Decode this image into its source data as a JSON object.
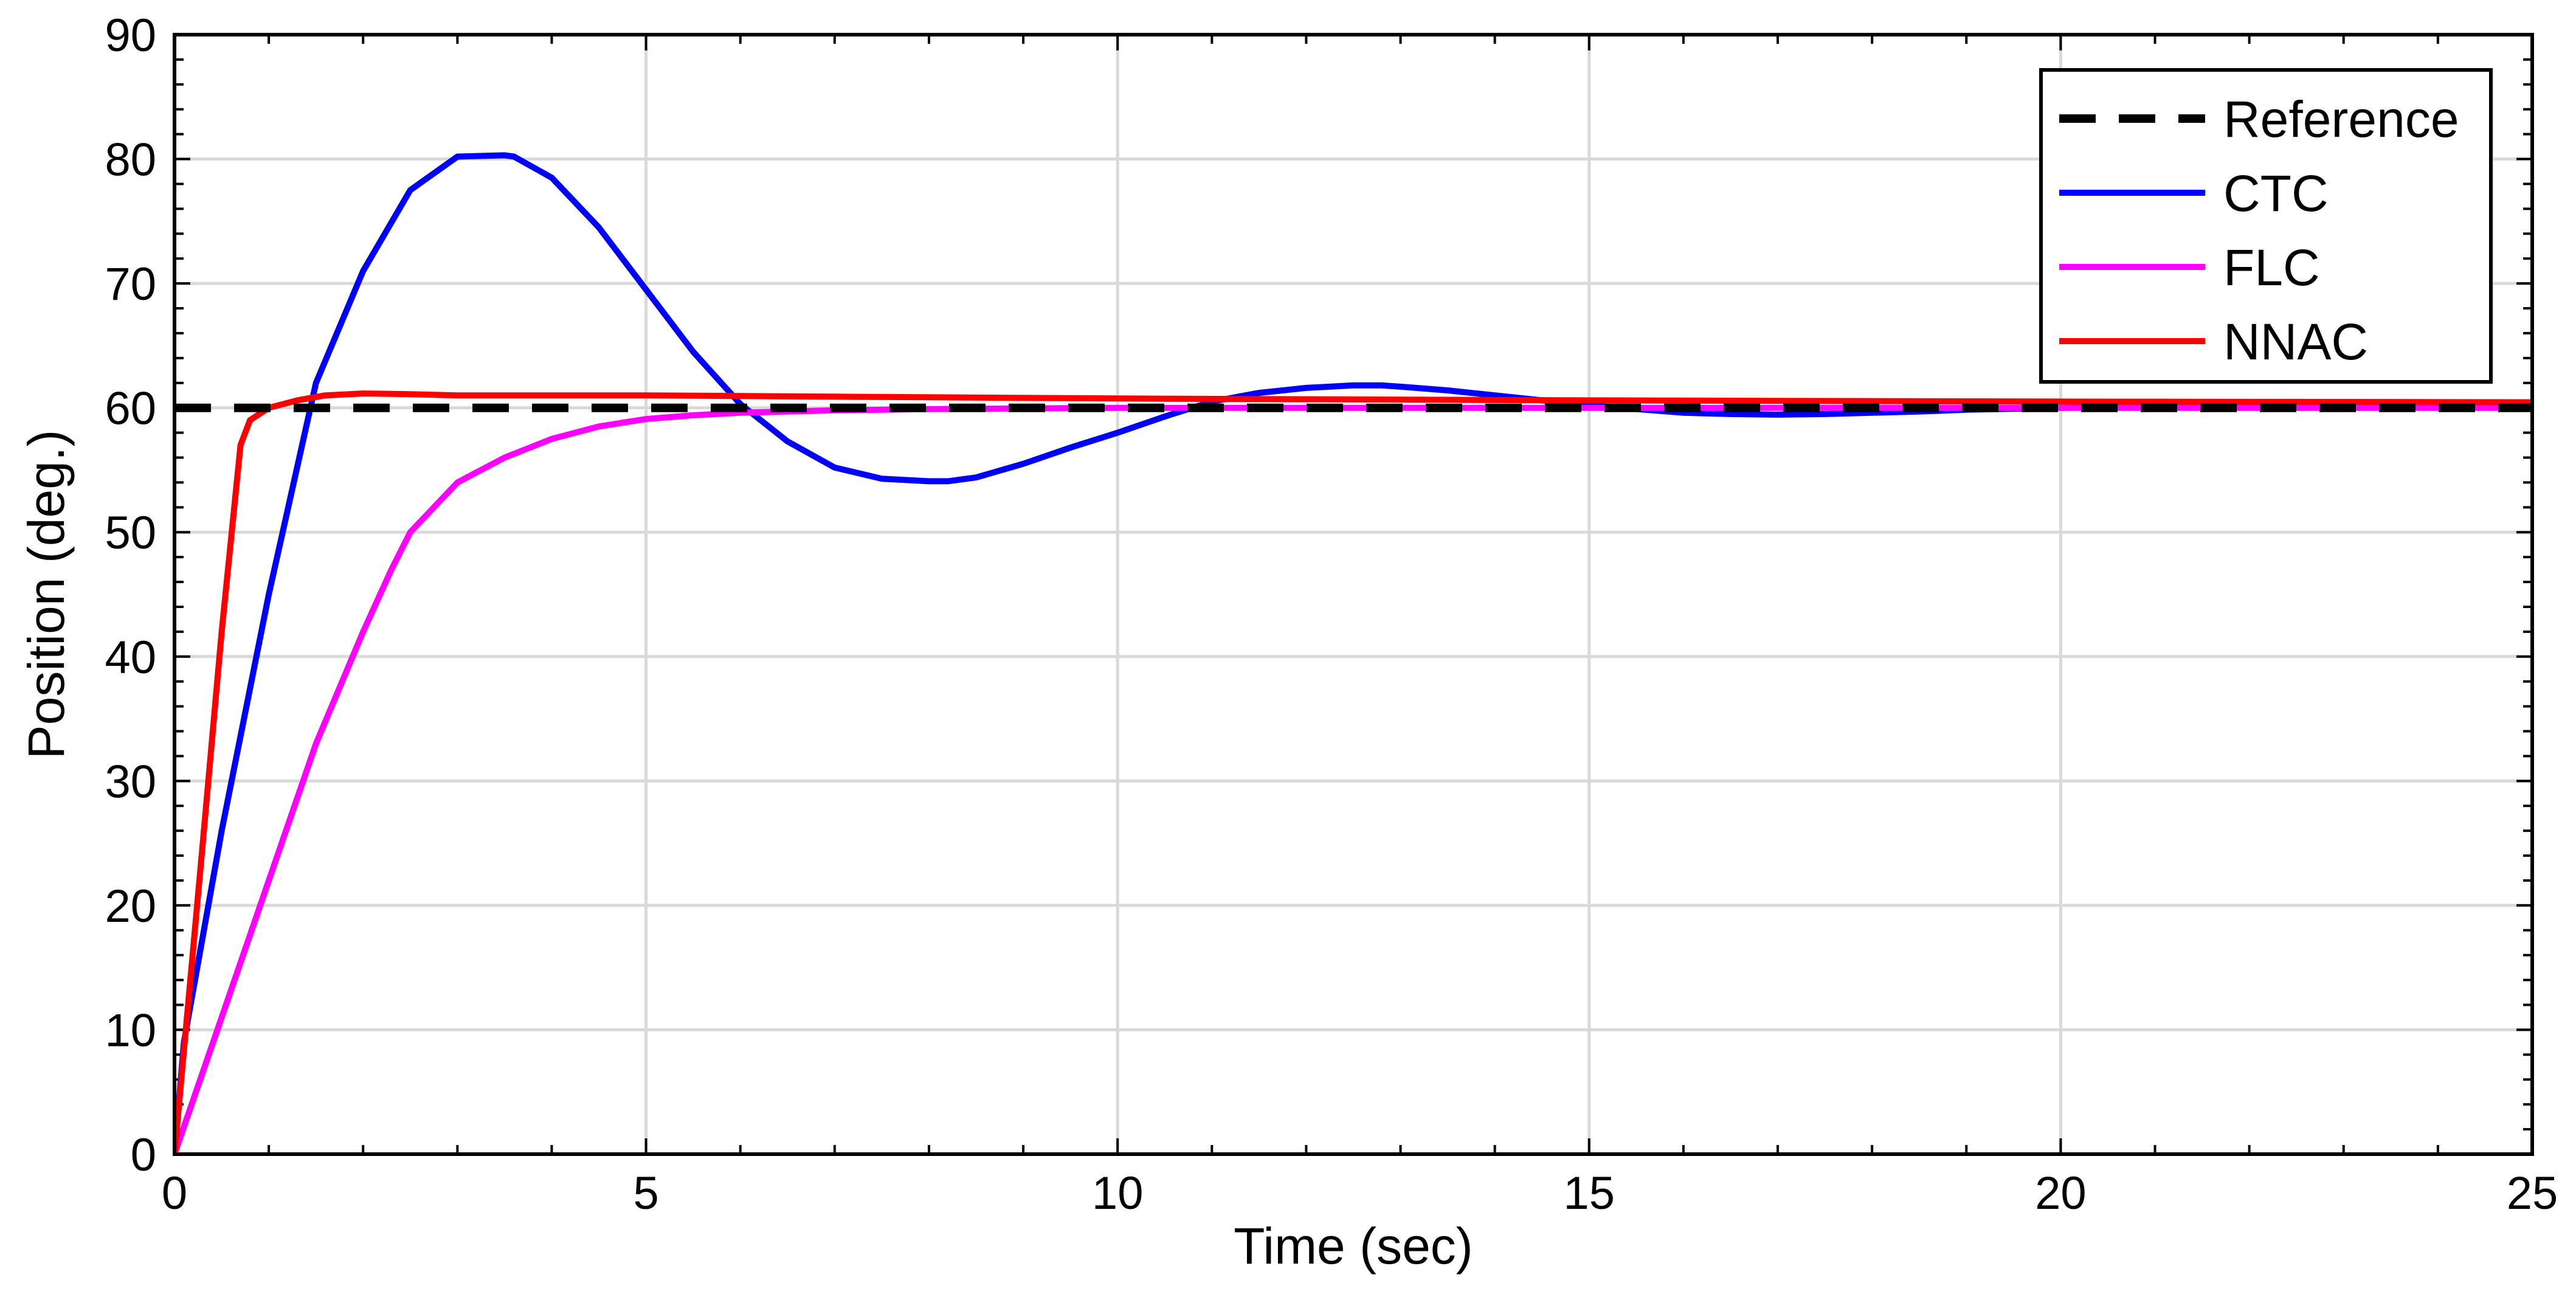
{
  "chart_data": {
    "type": "line",
    "title": "",
    "xlabel": "Time (sec)",
    "ylabel": "Position (deg.)",
    "xlim": [
      0,
      25
    ],
    "ylim": [
      0,
      90
    ],
    "xticks": [
      0,
      5,
      10,
      15,
      20,
      25
    ],
    "yticks": [
      0,
      10,
      20,
      30,
      40,
      50,
      60,
      70,
      80,
      90
    ],
    "grid": true,
    "legend_position": "top-right",
    "series": [
      {
        "name": "Reference",
        "color": "#000000",
        "style": "dashed",
        "x": [
          0,
          25
        ],
        "y": [
          60,
          60
        ]
      },
      {
        "name": "CTC",
        "color": "#0000ff",
        "style": "solid",
        "x": [
          0,
          0.1,
          0.5,
          1.0,
          1.5,
          2.0,
          2.5,
          3.0,
          3.5,
          3.6,
          4.0,
          4.5,
          5.0,
          5.5,
          6.0,
          6.5,
          7.0,
          7.5,
          8.0,
          8.2,
          8.5,
          9.0,
          9.5,
          10.0,
          10.5,
          11.0,
          11.5,
          12.0,
          12.5,
          12.8,
          13.0,
          13.5,
          14.0,
          14.5,
          15.0,
          15.5,
          16.0,
          16.5,
          17.0,
          17.5,
          18.0,
          18.5,
          19.0,
          20.0,
          21.0,
          22.0,
          23.0,
          24.0,
          25.0
        ],
        "y": [
          0,
          9,
          26,
          45,
          62,
          71,
          77.5,
          80.2,
          80.3,
          80.2,
          78.5,
          74.5,
          69.5,
          64.5,
          60.3,
          57.3,
          55.2,
          54.3,
          54.1,
          54.1,
          54.4,
          55.5,
          56.8,
          58.0,
          59.3,
          60.5,
          61.2,
          61.6,
          61.8,
          61.8,
          61.7,
          61.4,
          61.0,
          60.6,
          60.2,
          59.9,
          59.6,
          59.5,
          59.45,
          59.5,
          59.6,
          59.7,
          59.85,
          60.0,
          60.05,
          60.1,
          60.1,
          60.05,
          60.0
        ]
      },
      {
        "name": "FLC",
        "color": "#ff00ff",
        "style": "solid",
        "x": [
          0,
          0.5,
          1.0,
          1.5,
          2.0,
          2.3,
          2.5,
          3.0,
          3.5,
          4.0,
          4.5,
          5.0,
          5.5,
          6.0,
          7.0,
          8.0,
          10.0,
          15.0,
          20.0,
          25.0
        ],
        "y": [
          0,
          11,
          22,
          33,
          42,
          47,
          50,
          54,
          56,
          57.5,
          58.5,
          59.1,
          59.4,
          59.6,
          59.8,
          59.9,
          60.0,
          60.0,
          60.0,
          60.0
        ]
      },
      {
        "name": "NNAC",
        "color": "#ff0000",
        "style": "solid",
        "x": [
          0,
          0.3,
          0.5,
          0.7,
          0.8,
          1.0,
          1.3,
          1.6,
          2.0,
          2.5,
          3.0,
          4.0,
          5.0,
          7.0,
          10.0,
          15.0,
          20.0,
          25.0
        ],
        "y": [
          0,
          25,
          42,
          57,
          59,
          60,
          60.6,
          61.0,
          61.15,
          61.1,
          61.0,
          61.0,
          61.0,
          60.9,
          60.75,
          60.6,
          60.5,
          60.45
        ]
      }
    ]
  }
}
